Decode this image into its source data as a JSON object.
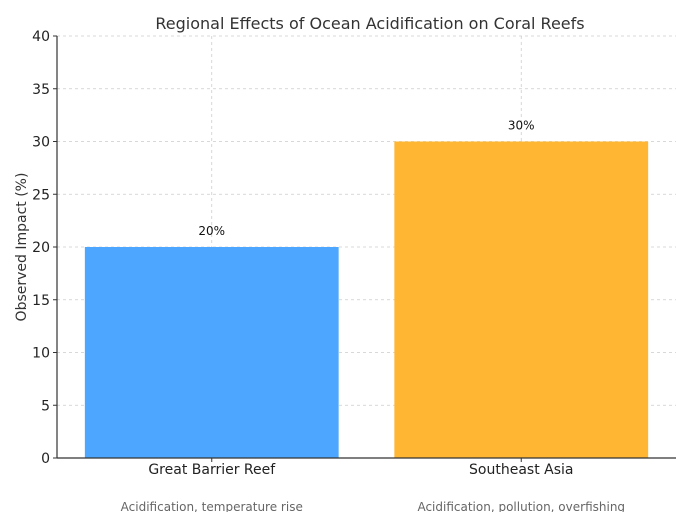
{
  "chart_data": {
    "type": "bar",
    "title": "Regional Effects of Ocean Acidification on Coral Reefs",
    "xlabel": "",
    "ylabel": "Observed Impact (%)",
    "categories": [
      "Great Barrier Reef",
      "Southeast Asia"
    ],
    "values": [
      20,
      30
    ],
    "data_labels": [
      "20%",
      "30%"
    ],
    "annotations": [
      "Acidification, temperature rise",
      "Acidification, pollution, overfishing"
    ],
    "colors": [
      "#4da6ff",
      "#ffb733"
    ],
    "ylim": [
      0,
      40
    ],
    "yticks": [
      "0",
      "5",
      "10",
      "15",
      "20",
      "25",
      "30",
      "35",
      "40"
    ],
    "grid": true
  }
}
